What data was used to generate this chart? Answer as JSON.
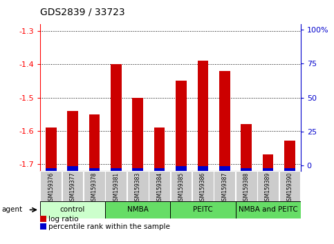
{
  "title": "GDS2839 / 33723",
  "samples": [
    "GSM159376",
    "GSM159377",
    "GSM159378",
    "GSM159381",
    "GSM159383",
    "GSM159384",
    "GSM159385",
    "GSM159386",
    "GSM159387",
    "GSM159388",
    "GSM159389",
    "GSM159390"
  ],
  "log_ratio": [
    -1.59,
    -1.54,
    -1.55,
    -1.4,
    -1.5,
    -1.59,
    -1.45,
    -1.39,
    -1.42,
    -1.58,
    -1.67,
    -1.63
  ],
  "percentile_rank": [
    2,
    3,
    2,
    2,
    2,
    2,
    3,
    3,
    3,
    2,
    2,
    2
  ],
  "ylim_left": [
    -1.72,
    -1.28
  ],
  "ylim_right": [
    -4,
    104
  ],
  "yticks_left": [
    -1.7,
    -1.6,
    -1.5,
    -1.4,
    -1.3
  ],
  "yticks_right": [
    0,
    25,
    50,
    75,
    100
  ],
  "ytick_labels_right": [
    "0",
    "25",
    "50",
    "75",
    "100%"
  ],
  "bar_color": "#cc0000",
  "percentile_color": "#0000cc",
  "grid_color": "#000000",
  "group_labels": [
    "control",
    "NMBA",
    "PEITC",
    "NMBA and PEITC"
  ],
  "group_starts": [
    0,
    3,
    6,
    9
  ],
  "group_ends": [
    3,
    6,
    9,
    12
  ],
  "group_colors": [
    "#ccffcc",
    "#66dd66",
    "#66dd66",
    "#66dd66"
  ],
  "agent_label": "agent",
  "legend_items": [
    {
      "color": "#cc0000",
      "label": "log ratio"
    },
    {
      "color": "#0000cc",
      "label": "percentile rank within the sample"
    }
  ],
  "background_color": "#ffffff",
  "sample_label_bg": "#cccccc",
  "bar_width": 0.5,
  "title_fontsize": 10,
  "tick_fontsize": 8,
  "sample_fontsize": 5.5,
  "group_fontsize": 7.5,
  "legend_fontsize": 7.5
}
